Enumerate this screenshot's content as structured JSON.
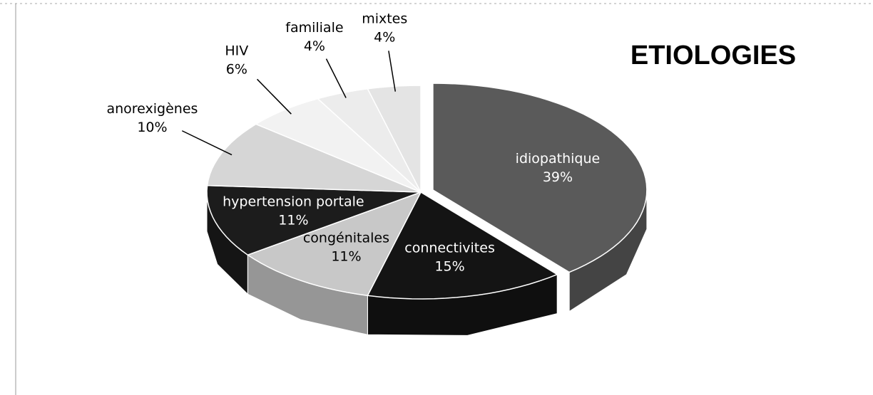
{
  "chart_data": {
    "type": "pie",
    "title": "ETIOLOGIES",
    "categories": [
      "idiopathique",
      "connectivites",
      "congénitales",
      "hypertension portale",
      "anorexigènes",
      "HIV",
      "familiale",
      "mixtes"
    ],
    "values": [
      39,
      15,
      11,
      11,
      10,
      6,
      4,
      4
    ],
    "value_labels": [
      "39%",
      "15%",
      "11%",
      "11%",
      "10%",
      "6%",
      "4%",
      "4%"
    ],
    "colors": [
      "#5a5a5a",
      "#141414",
      "#c8c8c8",
      "#1c1c1c",
      "#d6d6d6",
      "#f2f2f2",
      "#ececec",
      "#e4e4e4"
    ]
  }
}
